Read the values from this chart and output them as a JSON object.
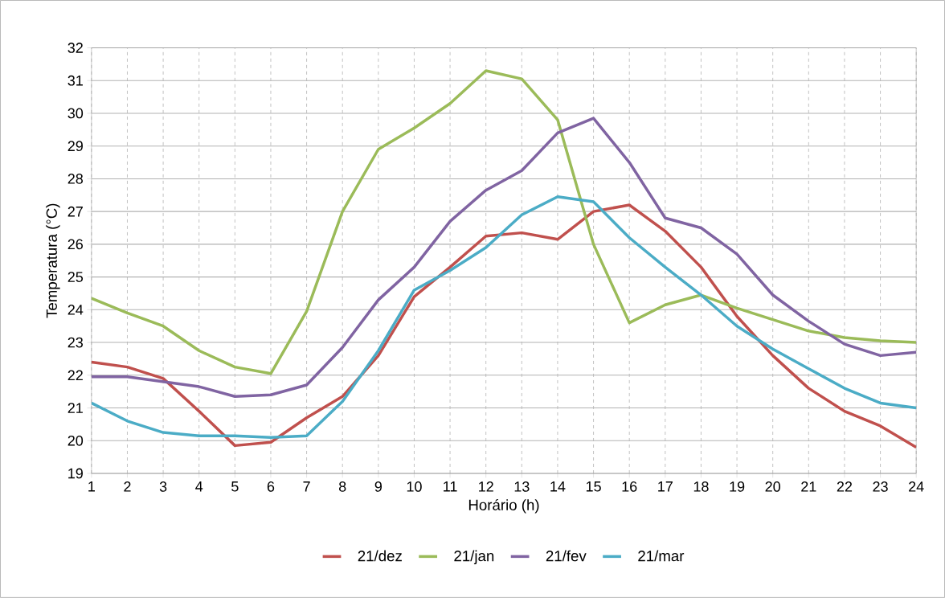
{
  "chart_data": {
    "type": "line",
    "xlabel": "Horário (h)",
    "ylabel": "Temperatura (°C)",
    "x": [
      1,
      2,
      3,
      4,
      5,
      6,
      7,
      8,
      9,
      10,
      11,
      12,
      13,
      14,
      15,
      16,
      17,
      18,
      19,
      20,
      21,
      22,
      23,
      24
    ],
    "xlim": [
      1,
      24
    ],
    "xticks": [
      1,
      2,
      3,
      4,
      5,
      6,
      7,
      8,
      9,
      10,
      11,
      12,
      13,
      14,
      15,
      16,
      17,
      18,
      19,
      20,
      21,
      22,
      23,
      24
    ],
    "ylim": [
      19,
      32
    ],
    "yticks": [
      19,
      20,
      21,
      22,
      23,
      24,
      25,
      26,
      27,
      28,
      29,
      30,
      31,
      32
    ],
    "grid": true,
    "legend": "bottom",
    "marker": "none",
    "line_style": "solid",
    "series": [
      {
        "name": "21/dez",
        "color": "#c0504d",
        "values": [
          22.4,
          22.25,
          21.9,
          20.9,
          19.85,
          19.95,
          20.7,
          21.35,
          22.6,
          24.4,
          25.3,
          26.25,
          26.35,
          26.15,
          27.0,
          27.2,
          26.4,
          25.3,
          23.8,
          22.6,
          21.6,
          20.9,
          20.45,
          19.8
        ]
      },
      {
        "name": "21/jan",
        "color": "#9bbb59",
        "values": [
          24.35,
          23.9,
          23.5,
          22.75,
          22.25,
          22.05,
          23.95,
          27.0,
          28.9,
          29.55,
          30.3,
          31.3,
          31.05,
          29.8,
          26.0,
          23.6,
          24.15,
          24.45,
          24.05,
          23.7,
          23.35,
          23.15,
          23.05,
          23.0
        ]
      },
      {
        "name": "21/fev",
        "color": "#8064a2",
        "values": [
          21.95,
          21.95,
          21.8,
          21.65,
          21.35,
          21.4,
          21.7,
          22.85,
          24.3,
          25.3,
          26.7,
          27.65,
          28.25,
          29.4,
          29.85,
          28.5,
          26.8,
          26.5,
          25.7,
          24.45,
          23.65,
          22.95,
          22.6,
          22.7
        ]
      },
      {
        "name": "21/mar",
        "color": "#4bacc6",
        "values": [
          21.15,
          20.6,
          20.25,
          20.15,
          20.15,
          20.1,
          20.15,
          21.2,
          22.75,
          24.6,
          25.2,
          25.9,
          26.9,
          27.45,
          27.3,
          26.2,
          25.3,
          24.45,
          23.5,
          22.8,
          22.2,
          21.6,
          21.15,
          21.0
        ]
      }
    ]
  }
}
